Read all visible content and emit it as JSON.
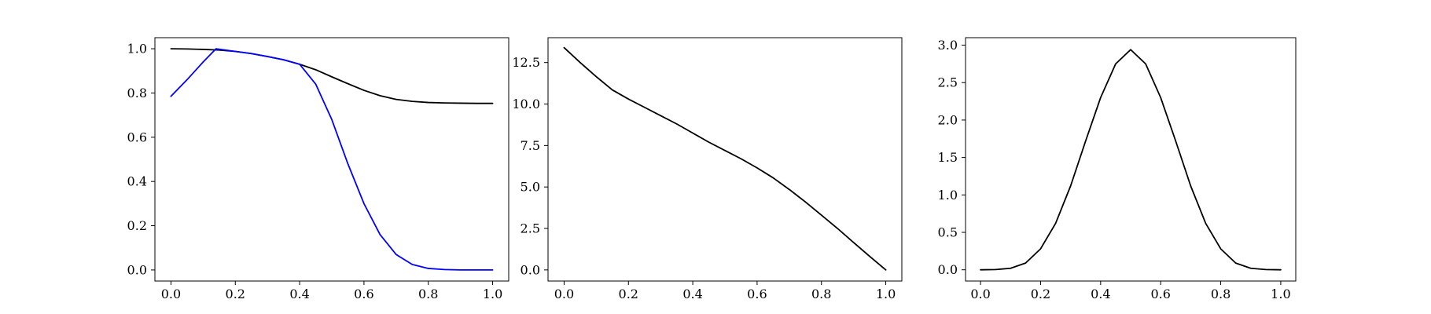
{
  "chart_data": [
    {
      "type": "line",
      "xlim": [
        -0.05,
        1.05
      ],
      "ylim": [
        -0.05,
        1.05
      ],
      "xticks": [
        0.0,
        0.2,
        0.4,
        0.6,
        0.8,
        1.0
      ],
      "xtick_labels": [
        "0.0",
        "0.2",
        "0.4",
        "0.6",
        "0.8",
        "1.0"
      ],
      "yticks": [
        0.0,
        0.2,
        0.4,
        0.6,
        0.8,
        1.0
      ],
      "ytick_labels": [
        "0.0",
        "0.2",
        "0.4",
        "0.6",
        "0.8",
        "1.0"
      ],
      "grid": false,
      "series": [
        {
          "color": "#000000",
          "x": [
            0.0,
            0.05,
            0.1,
            0.15,
            0.2,
            0.25,
            0.3,
            0.35,
            0.4,
            0.45,
            0.5,
            0.55,
            0.6,
            0.65,
            0.7,
            0.75,
            0.8,
            0.85,
            0.9,
            0.95,
            1.0
          ],
          "y": [
            1.0,
            0.999,
            0.997,
            0.994,
            0.988,
            0.978,
            0.965,
            0.95,
            0.93,
            0.905,
            0.873,
            0.842,
            0.812,
            0.788,
            0.771,
            0.762,
            0.757,
            0.755,
            0.754,
            0.753,
            0.753
          ]
        },
        {
          "color": "#0000ff",
          "x": [
            0.0,
            0.05,
            0.1,
            0.14,
            0.2,
            0.25,
            0.3,
            0.35,
            0.4,
            0.45,
            0.5,
            0.55,
            0.6,
            0.65,
            0.7,
            0.75,
            0.8,
            0.85,
            0.9,
            0.95,
            1.0
          ],
          "y": [
            0.785,
            0.86,
            0.94,
            1.0,
            0.988,
            0.978,
            0.965,
            0.95,
            0.93,
            0.84,
            0.68,
            0.48,
            0.3,
            0.16,
            0.07,
            0.025,
            0.007,
            0.002,
            0.0,
            0.0,
            0.0
          ]
        }
      ]
    },
    {
      "type": "line",
      "xlim": [
        -0.05,
        1.05
      ],
      "ylim": [
        -0.67,
        14.0
      ],
      "xticks": [
        0.0,
        0.2,
        0.4,
        0.6,
        0.8,
        1.0
      ],
      "xtick_labels": [
        "0.0",
        "0.2",
        "0.4",
        "0.6",
        "0.8",
        "1.0"
      ],
      "yticks": [
        0.0,
        2.5,
        5.0,
        7.5,
        10.0,
        12.5
      ],
      "ytick_labels": [
        "0.0",
        "2.5",
        "5.0",
        "7.5",
        "10.0",
        "12.5"
      ],
      "grid": false,
      "series": [
        {
          "color": "#000000",
          "x": [
            0.0,
            0.05,
            0.1,
            0.15,
            0.2,
            0.25,
            0.3,
            0.35,
            0.4,
            0.45,
            0.5,
            0.55,
            0.6,
            0.65,
            0.7,
            0.75,
            0.8,
            0.85,
            0.9,
            0.95,
            1.0
          ],
          "y": [
            13.4,
            12.5,
            11.65,
            10.85,
            10.3,
            9.8,
            9.3,
            8.8,
            8.25,
            7.7,
            7.2,
            6.7,
            6.15,
            5.55,
            4.85,
            4.1,
            3.3,
            2.5,
            1.65,
            0.82,
            0.0
          ]
        }
      ]
    },
    {
      "type": "line",
      "xlim": [
        -0.05,
        1.05
      ],
      "ylim": [
        -0.15,
        3.1
      ],
      "xticks": [
        0.0,
        0.2,
        0.4,
        0.6,
        0.8,
        1.0
      ],
      "xtick_labels": [
        "0.0",
        "0.2",
        "0.4",
        "0.6",
        "0.8",
        "1.0"
      ],
      "yticks": [
        0.0,
        0.5,
        1.0,
        1.5,
        2.0,
        2.5,
        3.0
      ],
      "ytick_labels": [
        "0.0",
        "0.5",
        "1.0",
        "1.5",
        "2.0",
        "2.5",
        "3.0"
      ],
      "grid": false,
      "series": [
        {
          "color": "#000000",
          "x": [
            0.0,
            0.05,
            0.1,
            0.15,
            0.2,
            0.25,
            0.3,
            0.35,
            0.4,
            0.45,
            0.5,
            0.55,
            0.6,
            0.65,
            0.7,
            0.75,
            0.8,
            0.85,
            0.9,
            0.95,
            1.0
          ],
          "y": [
            0.0,
            0.003,
            0.02,
            0.09,
            0.28,
            0.62,
            1.12,
            1.72,
            2.3,
            2.75,
            2.94,
            2.75,
            2.3,
            1.72,
            1.12,
            0.62,
            0.28,
            0.09,
            0.02,
            0.003,
            0.0
          ]
        }
      ]
    }
  ]
}
